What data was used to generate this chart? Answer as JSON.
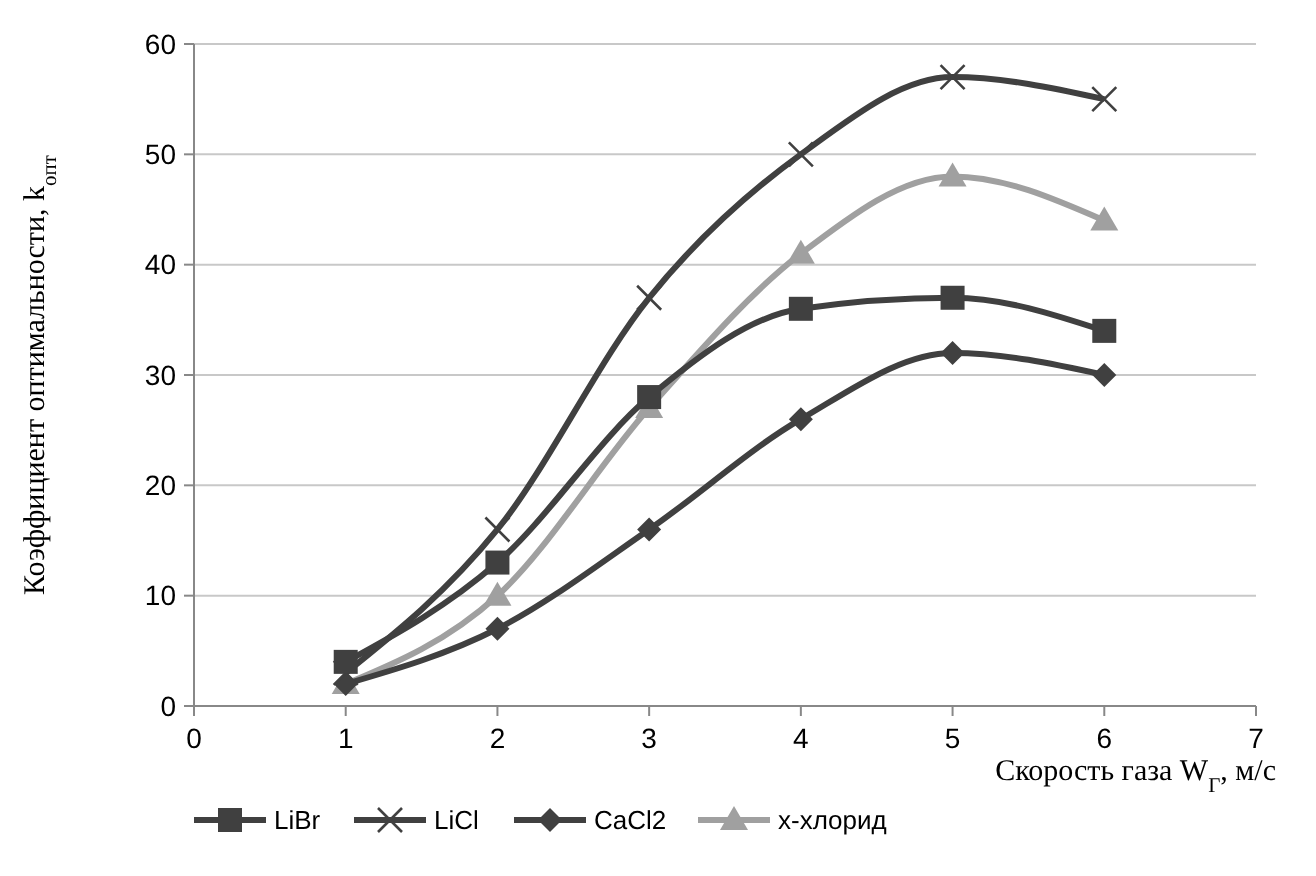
{
  "chart_data": {
    "type": "line",
    "xlabel": "Скорость газа W$_{Г}$, м/с",
    "ylabel": "Коэффициент оптимальности, k$_{опт}$",
    "x": [
      1,
      2,
      3,
      4,
      5,
      6
    ],
    "series": [
      {
        "name": "LiBr",
        "color": "#404040",
        "marker": "square",
        "values": [
          4,
          13,
          28,
          36,
          37,
          34
        ]
      },
      {
        "name": "LiCl",
        "color": "#404040",
        "marker": "cross",
        "values": [
          3,
          16,
          37,
          50,
          57,
          55
        ]
      },
      {
        "name": "CaCl2",
        "color": "#404040",
        "marker": "diamond",
        "values": [
          2,
          7,
          16,
          26,
          32,
          30
        ]
      },
      {
        "name": "x-хлорид",
        "color": "#a0a0a0",
        "marker": "triangle",
        "values": [
          2,
          10,
          27,
          41,
          48,
          44
        ]
      }
    ],
    "xlim": [
      0,
      7
    ],
    "xticks": [
      0,
      1,
      2,
      3,
      4,
      5,
      6,
      7
    ],
    "ylim": [
      0,
      60
    ],
    "yticks": [
      0,
      10,
      20,
      30,
      40,
      50,
      60
    ],
    "grid": "y",
    "legend": "bottom",
    "line_style": "solid"
  }
}
